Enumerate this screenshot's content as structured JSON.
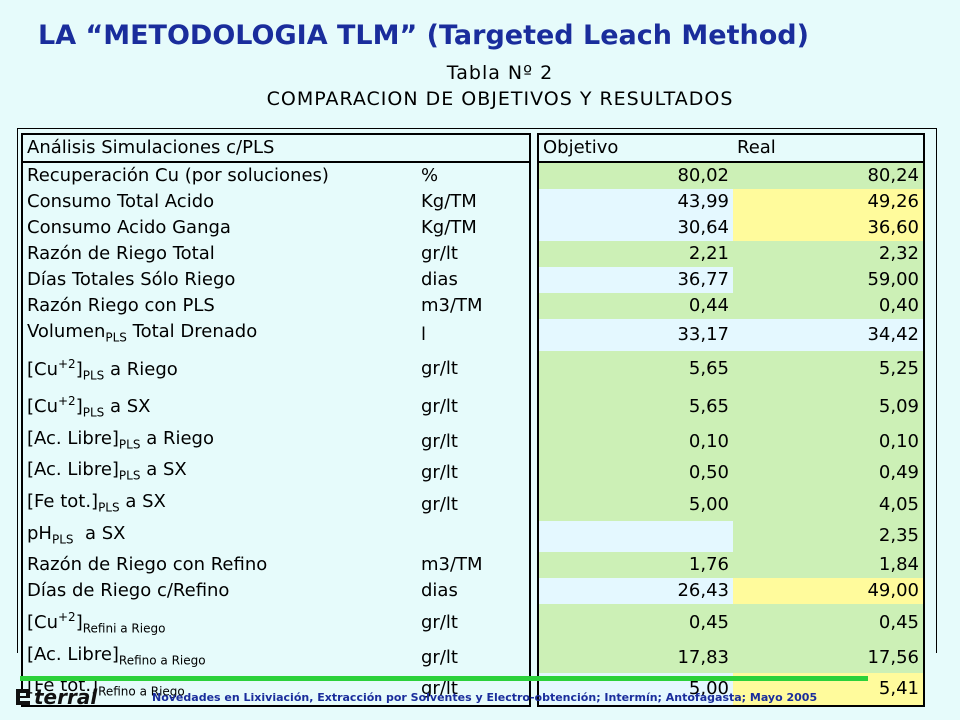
{
  "header": {
    "title": "LA “METODOLOGIA TLM” (Targeted Leach Method)",
    "table_label": "Tabla Nº 2",
    "subtitle": "COMPARACION DE OBJETIVOS Y RESULTADOS"
  },
  "table": {
    "head": {
      "analysis": "Análisis Simulaciones c/PLS",
      "objective": "Objetivo",
      "real": "Real"
    },
    "rows": [
      {
        "name": "Recuperación Cu (por soluciones)",
        "unit": "%",
        "objective": "80,02",
        "real": "80,24"
      },
      {
        "name": "Consumo Total Acido",
        "unit": "Kg/TM",
        "objective": "43,99",
        "real": "49,26"
      },
      {
        "name": "Consumo Acido Ganga",
        "unit": "Kg/TM",
        "objective": "30,64",
        "real": "36,60"
      },
      {
        "name": "Razón de Riego Total",
        "unit": "gr/lt",
        "objective": "2,21",
        "real": "2,32"
      },
      {
        "name": "Días Totales Sólo Riego",
        "unit": "dias",
        "objective": "36,77",
        "real": "59,00"
      },
      {
        "name": "Razón Riego con PLS",
        "unit": "m3/TM",
        "objective": "0,44",
        "real": "0,40"
      },
      {
        "name_a": "Volumen",
        "name_sub": "PLS",
        "name_b": " Total Drenado",
        "unit": "l",
        "objective": "33,17",
        "real": "34,42"
      },
      {
        "name_a": "[Cu",
        "name_sup": "+2",
        "name_c": "]",
        "name_sub": "PLS",
        "name_b": " a Riego",
        "unit": "gr/lt",
        "objective": "5,65",
        "real": "5,25"
      },
      {
        "name_a": "[Cu",
        "name_sup": "+2",
        "name_c": "]",
        "name_sub": "PLS",
        "name_b": " a SX",
        "unit": "gr/lt",
        "objective": "5,65",
        "real": "5,09"
      },
      {
        "name_a": "[Ac. Libre]",
        "name_sub": "PLS",
        "name_b": " a Riego",
        "unit": "gr/lt",
        "objective": "0,10",
        "real": "0,10"
      },
      {
        "name_a": "[Ac. Libre]",
        "name_sub": "PLS",
        "name_b": " a SX",
        "unit": "gr/lt",
        "objective": "0,50",
        "real": "0,49"
      },
      {
        "name_a": "[Fe tot.]",
        "name_sub": "PLS",
        "name_b": " a SX",
        "unit": "gr/lt",
        "objective": "5,00",
        "real": "4,05"
      },
      {
        "name_a": "pH",
        "name_sub": "PLS",
        "name_b": "  a SX",
        "unit": "",
        "objective": "",
        "real": "2,35"
      },
      {
        "name": "Razón de Riego con Refino",
        "unit": "m3/TM",
        "objective": "1,76",
        "real": "1,84"
      },
      {
        "name": "Días de Riego c/Refino",
        "unit": "dias",
        "objective": "26,43",
        "real": "49,00"
      },
      {
        "name_a": "[Cu",
        "name_sup": "+2",
        "name_c": "]",
        "name_sub": "Refini a Riego",
        "unit": "gr/lt",
        "objective": "0,45",
        "real": "0,45"
      },
      {
        "name_a": "[Ac. Libre]",
        "name_sub": "Refino a Riego",
        "unit": "gr/lt",
        "objective": "17,83",
        "real": "17,56"
      },
      {
        "name_a": "[Fe tot.]",
        "name_sub": "Refino a Riego",
        "unit": "gr/lt",
        "objective": "5,00",
        "real": "5,41"
      }
    ]
  },
  "footer": {
    "logo": "terral",
    "text": "Novedades en Lixiviación, Extracción por Solventes y Electro-obtención;  Intermín;  Antofagasta;  Mayo 2005"
  },
  "colors": {
    "title": "#1a2d9c",
    "green_cell": "#ccf0b6",
    "yellow_cell": "#fffb9c",
    "light_cell": "#e4f8ff",
    "bar": "#2bd13a"
  }
}
